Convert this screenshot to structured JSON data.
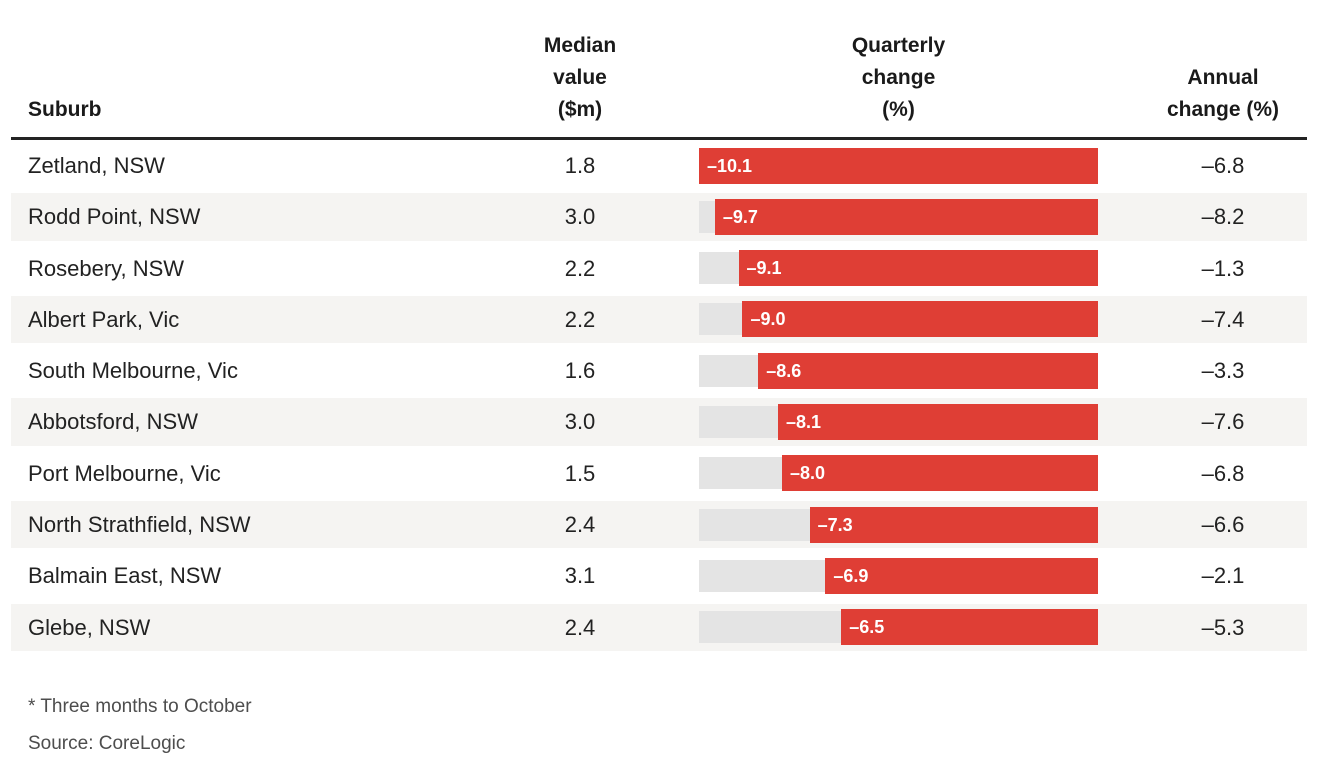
{
  "table": {
    "headers": {
      "suburb": "Suburb",
      "median_lines": [
        "Median",
        "value",
        "($m)"
      ],
      "quarterly_lines": [
        "Quarterly",
        "change",
        "(%)"
      ],
      "annual_lines": [
        "Annual",
        "change (%)"
      ]
    }
  },
  "footnotes": {
    "asterisk": "* Three months to October",
    "source": "Source: CoreLogic"
  },
  "colors": {
    "bar_red": "#df3e35",
    "bar_track_gray": "#e4e4e4",
    "row_stripe_gray": "#f5f4f2",
    "header_rule": "#232323",
    "body_text": "#222222",
    "footnote_text": "#4d4d4d"
  },
  "chart_data": {
    "type": "bar",
    "orientation": "horizontal",
    "title": "",
    "categories": [
      "Zetland, NSW",
      "Rodd Point, NSW",
      "Rosebery, NSW",
      "Albert Park, Vic",
      "South Melbourne, Vic",
      "Abbotsford, NSW",
      "Port Melbourne, Vic",
      "North Strathfield, NSW",
      "Balmain East, NSW",
      "Glebe, NSW"
    ],
    "series": [
      {
        "name": "Median value ($m)",
        "values": [
          1.8,
          3.0,
          2.2,
          2.2,
          1.6,
          3.0,
          1.5,
          2.4,
          3.1,
          2.4
        ]
      },
      {
        "name": "Quarterly change (%)",
        "values": [
          -10.1,
          -9.7,
          -9.1,
          -9.0,
          -8.6,
          -8.1,
          -8.0,
          -7.3,
          -6.9,
          -6.5
        ]
      },
      {
        "name": "Annual change (%)",
        "values": [
          -6.8,
          -8.2,
          -1.3,
          -7.4,
          -3.3,
          -7.6,
          -6.8,
          -6.6,
          -2.1,
          -5.3
        ]
      }
    ],
    "bar_axis_max_abs": 10.1,
    "legend": "none",
    "grid": false,
    "footnote": "* Three months to October",
    "source": "Source: CoreLogic"
  }
}
